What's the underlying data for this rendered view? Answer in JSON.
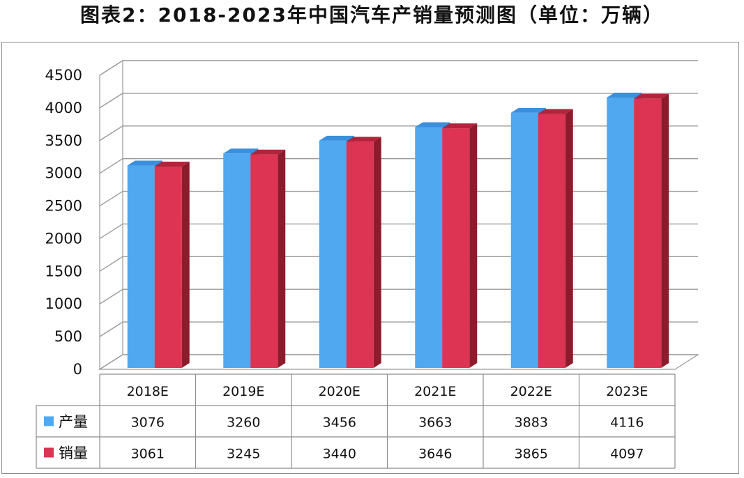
{
  "title": "图表2：2018-2023年中国汽车产销量预测图（单位：万辆）",
  "chart_data": {
    "type": "bar",
    "categories": [
      "2018E",
      "2019E",
      "2020E",
      "2021E",
      "2022E",
      "2023E"
    ],
    "series": [
      {
        "name": "产量",
        "values": [
          3076,
          3260,
          3456,
          3663,
          3883,
          4116
        ],
        "color": "#4fa8f0",
        "side_color": "#2c78c0",
        "top_color": "#3b8fdc"
      },
      {
        "name": "销量",
        "values": [
          3061,
          3245,
          3440,
          3646,
          3865,
          4097
        ],
        "color": "#dc3452",
        "side_color": "#8c1c2c",
        "top_color": "#b2243c"
      }
    ],
    "ylim": [
      0,
      4500
    ],
    "yticks": [
      0,
      500,
      1000,
      1500,
      2000,
      2500,
      3000,
      3500,
      4000,
      4500
    ],
    "grid": true,
    "data_table": true
  }
}
